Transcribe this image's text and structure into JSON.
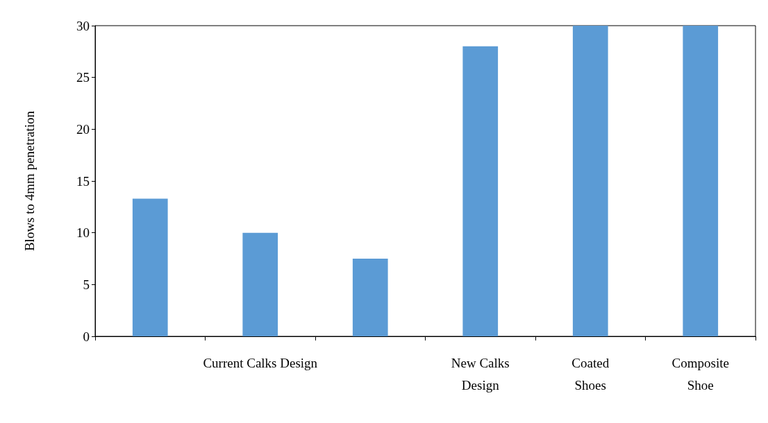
{
  "chart_data": {
    "type": "bar",
    "ylabel": "Blows to 4mm penetration",
    "categories": [
      null,
      "Current Calks Design",
      null,
      "New Calks Design",
      "Coated Shoes",
      "Composite Shoe"
    ],
    "values": [
      13.3,
      10,
      7.5,
      28,
      30,
      30
    ],
    "color": "#5b9bd5",
    "ylim": [
      0,
      30
    ],
    "yticks": [
      0,
      5,
      10,
      15,
      20,
      25,
      30
    ],
    "grid": false
  }
}
